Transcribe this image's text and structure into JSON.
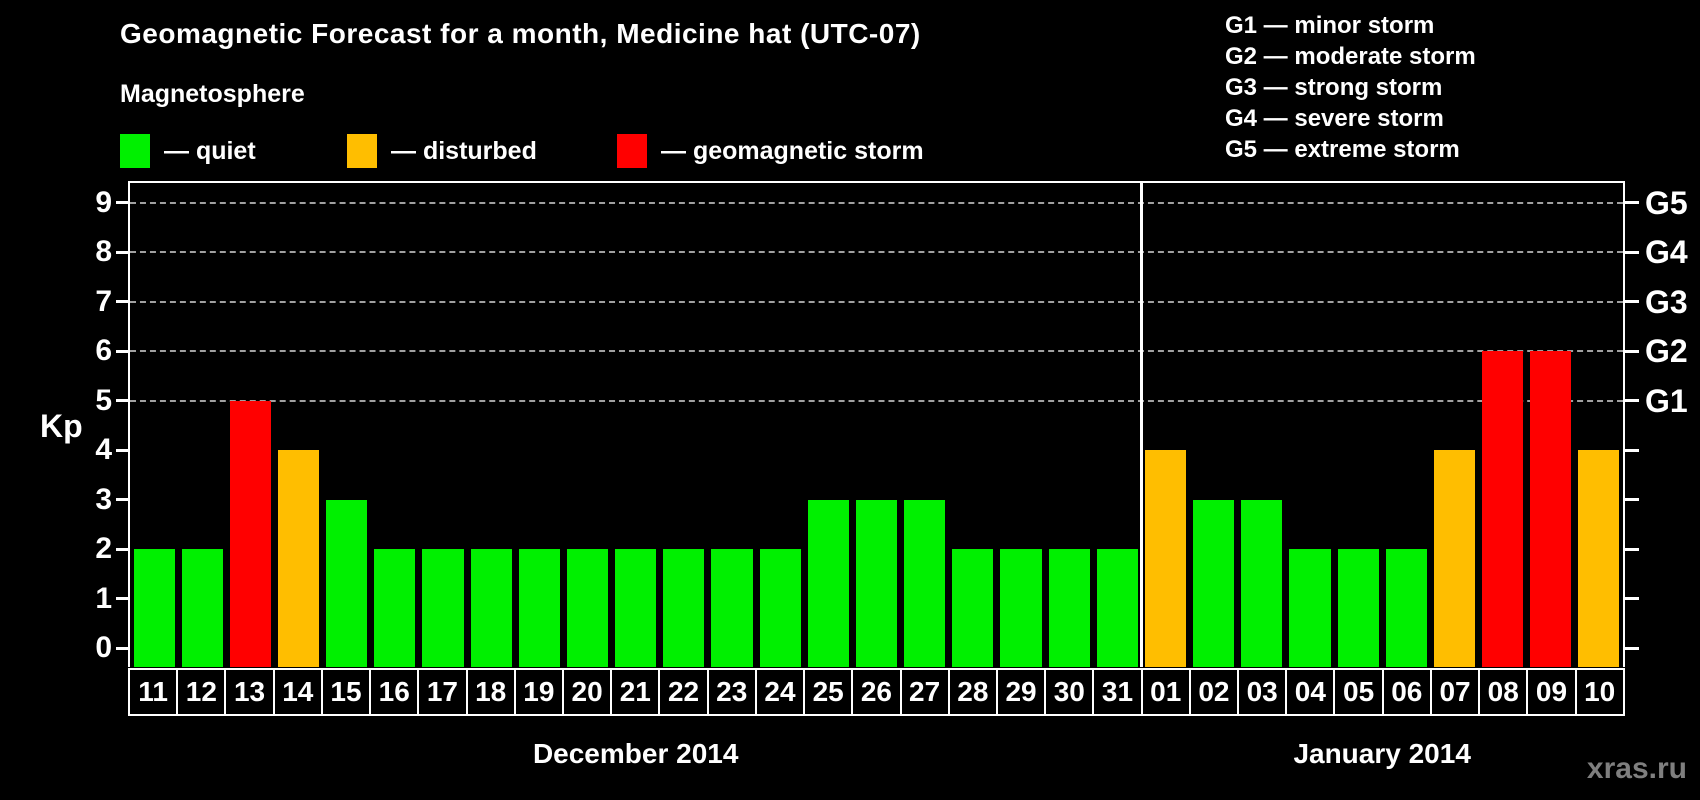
{
  "chart_data": {
    "type": "bar",
    "title": "Geomagnetic Forecast for a month, Medicine hat (UTC-07)",
    "ylabel": "Kp",
    "ylim": [
      0,
      9
    ],
    "yticks": [
      0,
      1,
      2,
      3,
      4,
      5,
      6,
      7,
      8,
      9
    ],
    "gridlines_at": [
      5,
      6,
      7,
      8,
      9
    ],
    "grid": "horizontal dashed lines at storm levels Kp 5-9 only",
    "g_scale": [
      {
        "kp": 5,
        "label": "G1"
      },
      {
        "kp": 6,
        "label": "G2"
      },
      {
        "kp": 7,
        "label": "G3"
      },
      {
        "kp": 8,
        "label": "G4"
      },
      {
        "kp": 9,
        "label": "G5"
      }
    ],
    "status_colors": {
      "quiet": "#00f000",
      "disturbed": "#ffbe00",
      "storm": "#ff0000"
    },
    "months": [
      {
        "label": "December 2014",
        "days": [
          {
            "day": "11",
            "kp": 2,
            "status": "quiet"
          },
          {
            "day": "12",
            "kp": 2,
            "status": "quiet"
          },
          {
            "day": "13",
            "kp": 5,
            "status": "storm"
          },
          {
            "day": "14",
            "kp": 4,
            "status": "disturbed"
          },
          {
            "day": "15",
            "kp": 3,
            "status": "quiet"
          },
          {
            "day": "16",
            "kp": 2,
            "status": "quiet"
          },
          {
            "day": "17",
            "kp": 2,
            "status": "quiet"
          },
          {
            "day": "18",
            "kp": 2,
            "status": "quiet"
          },
          {
            "day": "19",
            "kp": 2,
            "status": "quiet"
          },
          {
            "day": "20",
            "kp": 2,
            "status": "quiet"
          },
          {
            "day": "21",
            "kp": 2,
            "status": "quiet"
          },
          {
            "day": "22",
            "kp": 2,
            "status": "quiet"
          },
          {
            "day": "23",
            "kp": 2,
            "status": "quiet"
          },
          {
            "day": "24",
            "kp": 2,
            "status": "quiet"
          },
          {
            "day": "25",
            "kp": 3,
            "status": "quiet"
          },
          {
            "day": "26",
            "kp": 3,
            "status": "quiet"
          },
          {
            "day": "27",
            "kp": 3,
            "status": "quiet"
          },
          {
            "day": "28",
            "kp": 2,
            "status": "quiet"
          },
          {
            "day": "29",
            "kp": 2,
            "status": "quiet"
          },
          {
            "day": "30",
            "kp": 2,
            "status": "quiet"
          },
          {
            "day": "31",
            "kp": 2,
            "status": "quiet"
          }
        ]
      },
      {
        "label": "January 2014",
        "days": [
          {
            "day": "01",
            "kp": 4,
            "status": "disturbed"
          },
          {
            "day": "02",
            "kp": 3,
            "status": "quiet"
          },
          {
            "day": "03",
            "kp": 3,
            "status": "quiet"
          },
          {
            "day": "04",
            "kp": 2,
            "status": "quiet"
          },
          {
            "day": "05",
            "kp": 2,
            "status": "quiet"
          },
          {
            "day": "06",
            "kp": 2,
            "status": "quiet"
          },
          {
            "day": "07",
            "kp": 4,
            "status": "disturbed"
          },
          {
            "day": "08",
            "kp": 6,
            "status": "storm"
          },
          {
            "day": "09",
            "kp": 6,
            "status": "storm"
          },
          {
            "day": "10",
            "kp": 4,
            "status": "disturbed"
          }
        ]
      }
    ]
  },
  "legend": {
    "heading": "Magnetosphere",
    "items": [
      {
        "status": "quiet",
        "label": "— quiet"
      },
      {
        "status": "disturbed",
        "label": "— disturbed"
      },
      {
        "status": "storm",
        "label": "— geomagnetic storm"
      }
    ]
  },
  "gscale_legend": [
    "G1 — minor storm",
    "G2 — moderate storm",
    "G3 — strong storm",
    "G4 — severe storm",
    "G5 — extreme storm"
  ],
  "watermark": "xras.ru"
}
